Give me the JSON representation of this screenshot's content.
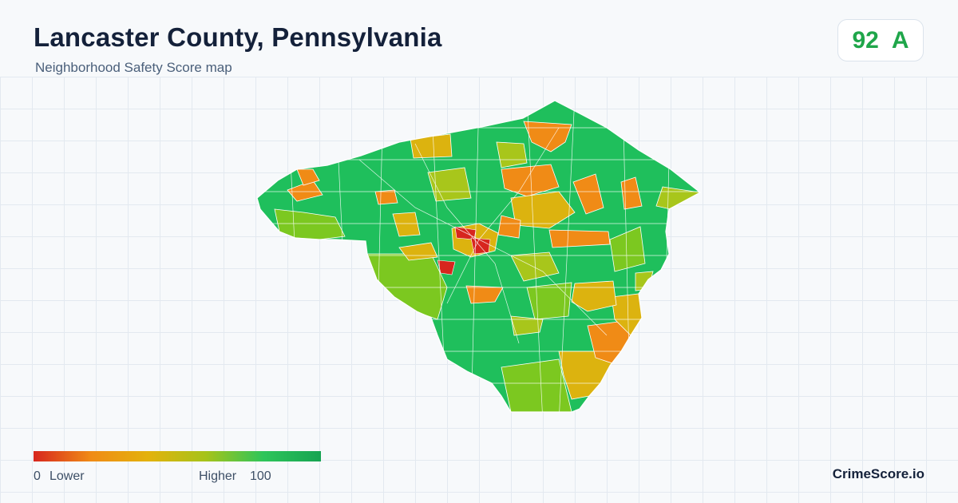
{
  "header": {
    "title": "Lancaster County, Pennsylvania",
    "subtitle": "Neighborhood Safety Score map"
  },
  "score_badge": {
    "score": "92",
    "grade": "A",
    "color": "#1fa64a"
  },
  "legend": {
    "min_label": "0",
    "low_label": "Lower",
    "high_label": "Higher",
    "max_label": "100",
    "gradient_stops": [
      "#d7261e",
      "#f08b16",
      "#e3b20c",
      "#a6c31a",
      "#2ec55a",
      "#16a352"
    ]
  },
  "map": {
    "palette": {
      "very_low": "#d7261e",
      "low": "#f08b16",
      "mid": "#dcb30f",
      "mid_high": "#a8c61b",
      "high": "#7cc820",
      "very_high": "#1fbf5c"
    }
  },
  "brand": {
    "name": "CrimeScore.io"
  }
}
